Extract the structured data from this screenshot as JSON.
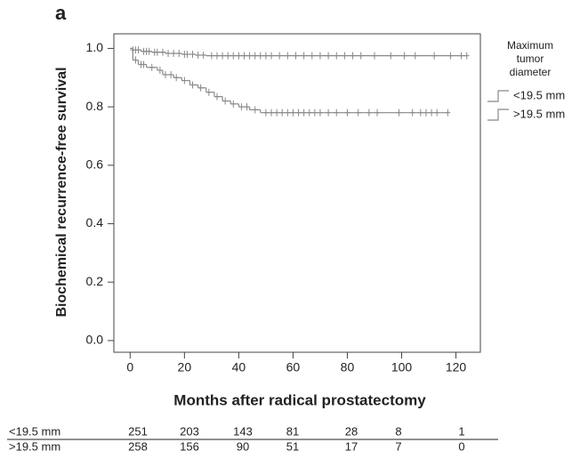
{
  "chart_data": {
    "type": "km",
    "panel_label": "a",
    "x_label": "Months after radical prostatectomy",
    "y_label": "Biochemical recurrence-free survival",
    "legend_title": "Maximum tumor diameter",
    "xlim": [
      -6,
      129
    ],
    "ylim": [
      -0.04,
      1.05
    ],
    "xticks": [
      0,
      20,
      40,
      60,
      80,
      100,
      120
    ],
    "yticks": [
      {
        "value": 0,
        "label": "0.0"
      },
      0.2,
      0.4,
      0.6,
      0.8,
      {
        "value": 1,
        "label": "1.0"
      }
    ],
    "series": [
      {
        "name": "<19.5 mm",
        "color": "#888888",
        "x": [
          0,
          1,
          4,
          8,
          13,
          19,
          24,
          28
        ],
        "values": [
          1,
          0.995,
          0.99,
          0.987,
          0.983,
          0.98,
          0.977,
          0.975
        ],
        "censored": [
          1,
          2,
          3,
          5,
          6,
          7,
          9,
          10,
          12,
          14,
          16,
          18,
          20,
          21,
          23,
          25,
          27,
          30,
          32,
          34,
          36,
          38,
          40,
          42,
          44,
          46,
          48,
          50,
          52,
          55,
          58,
          61,
          64,
          67,
          70,
          73,
          76,
          79,
          82,
          85,
          90,
          96,
          101,
          105,
          112,
          118,
          122,
          124
        ]
      },
      {
        "name": ">19.5 mm",
        "color": "#888888",
        "x": [
          0,
          1,
          3,
          6,
          10,
          12,
          16,
          19,
          22,
          25,
          28,
          31,
          34,
          37,
          40,
          44,
          48
        ],
        "values": [
          1,
          0.96,
          0.945,
          0.935,
          0.925,
          0.91,
          0.9,
          0.89,
          0.875,
          0.865,
          0.85,
          0.835,
          0.82,
          0.81,
          0.8,
          0.79,
          0.78
        ],
        "censored": [
          2,
          4,
          5,
          8,
          11,
          13,
          15,
          17,
          20,
          23,
          26,
          29,
          32,
          35,
          38,
          41,
          43,
          46,
          50,
          52,
          54,
          56,
          58,
          60,
          62,
          64,
          66,
          68,
          70,
          73,
          76,
          80,
          84,
          88,
          91,
          99,
          104,
          107,
          109,
          111,
          113,
          117
        ]
      }
    ],
    "risk_table": [
      {
        "label": "<19.5 mm",
        "counts": [
          251,
          203,
          143,
          81,
          28,
          8,
          1
        ]
      },
      {
        "label": ">19.5 mm",
        "counts": [
          258,
          156,
          90,
          51,
          17,
          7,
          0
        ]
      }
    ]
  }
}
